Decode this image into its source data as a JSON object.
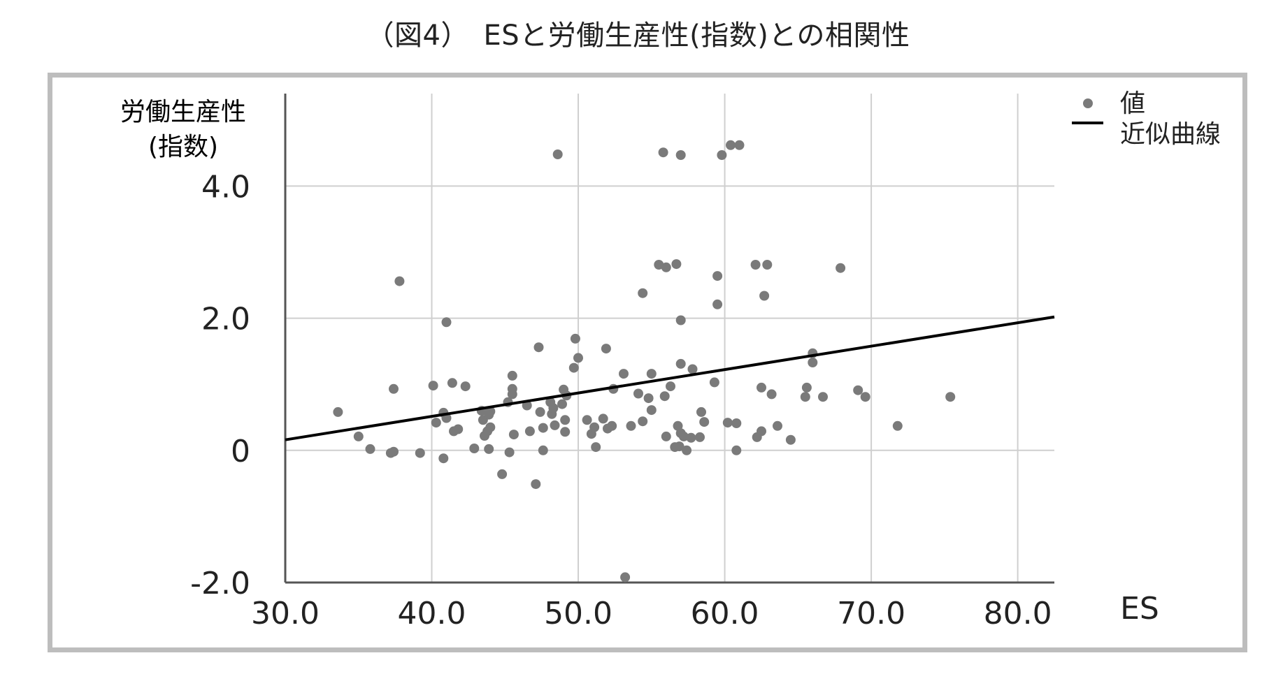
{
  "title": "（図4）　ESと労働生産性(指数)との相関性",
  "chart_data": {
    "type": "scatter",
    "title": "（図4）　ESと労働生産性(指数)との相関性",
    "xlabel": "ES",
    "ylabel_lines": [
      "労働生産性",
      "(指数)"
    ],
    "xlim": [
      30,
      82.5
    ],
    "ylim": [
      -2.0,
      5.4
    ],
    "xticks": [
      30,
      40,
      50,
      60,
      70,
      80
    ],
    "xtick_labels": [
      "30.0",
      "40.0",
      "50.0",
      "60.0",
      "70.0",
      "80.0"
    ],
    "yticks": [
      -2,
      0,
      2,
      4
    ],
    "ytick_labels": [
      "-2.0",
      "0",
      "2.0",
      "4.0"
    ],
    "grid": true,
    "legend_position": "top-right",
    "colors": {
      "points": "#7a7a7a",
      "trendline": "#000000",
      "grid": "#cfcfcf",
      "axis": "#555555",
      "frame": "#bdbdbd"
    },
    "series": [
      {
        "name": "値",
        "kind": "scatter",
        "points": [
          [
            33.6,
            0.58
          ],
          [
            35.0,
            0.21
          ],
          [
            35.8,
            0.02
          ],
          [
            37.2,
            -0.04
          ],
          [
            37.4,
            -0.02
          ],
          [
            37.4,
            0.93
          ],
          [
            37.8,
            2.56
          ],
          [
            39.2,
            -0.04
          ],
          [
            40.1,
            0.98
          ],
          [
            40.3,
            0.42
          ],
          [
            40.8,
            0.57
          ],
          [
            40.8,
            -0.12
          ],
          [
            41.0,
            1.94
          ],
          [
            41.0,
            0.49
          ],
          [
            41.4,
            1.02
          ],
          [
            41.5,
            0.29
          ],
          [
            41.8,
            0.32
          ],
          [
            42.3,
            0.97
          ],
          [
            42.9,
            0.03
          ],
          [
            43.4,
            0.6
          ],
          [
            43.5,
            0.46
          ],
          [
            43.6,
            0.22
          ],
          [
            43.8,
            0.29
          ],
          [
            43.9,
            0.02
          ],
          [
            43.9,
            0.54
          ],
          [
            44.0,
            0.59
          ],
          [
            44.0,
            0.35
          ],
          [
            44.8,
            -0.36
          ],
          [
            45.2,
            0.73
          ],
          [
            45.3,
            -0.03
          ],
          [
            45.5,
            1.13
          ],
          [
            45.5,
            0.93
          ],
          [
            45.5,
            0.85
          ],
          [
            45.6,
            0.24
          ],
          [
            46.5,
            0.68
          ],
          [
            46.7,
            0.29
          ],
          [
            47.1,
            -0.51
          ],
          [
            47.3,
            1.56
          ],
          [
            47.4,
            0.58
          ],
          [
            47.6,
            0.34
          ],
          [
            47.6,
            0.0
          ],
          [
            48.1,
            0.73
          ],
          [
            48.2,
            0.55
          ],
          [
            48.3,
            0.64
          ],
          [
            48.4,
            0.38
          ],
          [
            48.6,
            4.48
          ],
          [
            48.9,
            0.7
          ],
          [
            49.0,
            0.92
          ],
          [
            49.1,
            0.28
          ],
          [
            49.1,
            0.46
          ],
          [
            49.2,
            0.83
          ],
          [
            49.7,
            1.25
          ],
          [
            49.8,
            1.69
          ],
          [
            50.0,
            1.4
          ],
          [
            50.6,
            0.46
          ],
          [
            50.9,
            0.25
          ],
          [
            51.1,
            0.35
          ],
          [
            51.2,
            0.05
          ],
          [
            51.7,
            0.48
          ],
          [
            51.9,
            1.54
          ],
          [
            52.0,
            0.33
          ],
          [
            52.3,
            0.37
          ],
          [
            52.4,
            0.93
          ],
          [
            53.1,
            1.16
          ],
          [
            53.2,
            -1.92
          ],
          [
            53.6,
            0.37
          ],
          [
            54.1,
            0.86
          ],
          [
            54.4,
            2.38
          ],
          [
            54.4,
            0.44
          ],
          [
            54.8,
            0.79
          ],
          [
            55.0,
            0.61
          ],
          [
            55.0,
            1.16
          ],
          [
            55.5,
            2.81
          ],
          [
            55.8,
            4.51
          ],
          [
            55.9,
            0.82
          ],
          [
            56.0,
            0.21
          ],
          [
            56.0,
            2.77
          ],
          [
            56.3,
            0.97
          ],
          [
            56.6,
            0.05
          ],
          [
            56.7,
            2.82
          ],
          [
            56.8,
            0.37
          ],
          [
            56.9,
            0.06
          ],
          [
            57.0,
            0.26
          ],
          [
            57.0,
            1.97
          ],
          [
            57.0,
            1.31
          ],
          [
            57.0,
            4.47
          ],
          [
            57.2,
            0.21
          ],
          [
            57.4,
            0.0
          ],
          [
            57.7,
            0.19
          ],
          [
            57.8,
            1.23
          ],
          [
            58.3,
            0.2
          ],
          [
            58.4,
            0.58
          ],
          [
            58.6,
            0.43
          ],
          [
            59.3,
            1.03
          ],
          [
            59.5,
            2.21
          ],
          [
            59.5,
            2.64
          ],
          [
            59.8,
            4.47
          ],
          [
            60.2,
            0.42
          ],
          [
            60.4,
            4.62
          ],
          [
            60.8,
            0.41
          ],
          [
            60.8,
            0.0
          ],
          [
            61.0,
            4.62
          ],
          [
            62.1,
            2.81
          ],
          [
            62.2,
            0.2
          ],
          [
            62.5,
            0.95
          ],
          [
            62.5,
            0.29
          ],
          [
            62.7,
            2.34
          ],
          [
            62.9,
            2.81
          ],
          [
            63.2,
            0.85
          ],
          [
            63.6,
            0.37
          ],
          [
            64.5,
            0.16
          ],
          [
            65.5,
            0.81
          ],
          [
            65.6,
            0.95
          ],
          [
            66.0,
            1.47
          ],
          [
            66.0,
            1.33
          ],
          [
            66.7,
            0.81
          ],
          [
            67.9,
            2.76
          ],
          [
            69.1,
            0.91
          ],
          [
            69.6,
            0.81
          ],
          [
            71.8,
            0.37
          ],
          [
            75.4,
            0.81
          ]
        ]
      },
      {
        "name": "近似曲線",
        "kind": "line",
        "points": [
          [
            30.0,
            0.16
          ],
          [
            82.5,
            2.02
          ]
        ]
      }
    ]
  }
}
